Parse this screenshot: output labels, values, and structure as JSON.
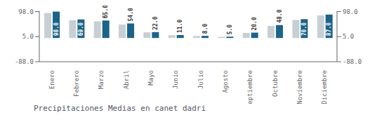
{
  "chart_data": {
    "type": "bar",
    "title": "Precipitaciones Medias en canet dadri",
    "categories": [
      "Enero",
      "Febrero",
      "Marzo",
      "Abril",
      "Mayo",
      "Junio",
      "Julio",
      "Agosto",
      "Septiembre",
      "Octubre",
      "Noviembre",
      "Diciembre"
    ],
    "series": [
      {
        "color": "#c8cfd4",
        "values": [
          93.0,
          66.0,
          62.0,
          50.0,
          21.0,
          10.5,
          7.5,
          4.5,
          19.0,
          45.0,
          67.0,
          84.0
        ]
      },
      {
        "color": "#1b6388",
        "values": [
          98.0,
          69.0,
          65.0,
          54.0,
          22.0,
          11.0,
          8.0,
          5.0,
          20.0,
          48.0,
          70.0,
          87.0
        ],
        "data_labels": true,
        "value_labels": [
          "98.0",
          "69.0",
          "65.0",
          "54.0",
          "22.0",
          "11.0",
          "8.0",
          "5.0",
          "20.0",
          "48.0",
          "70.0",
          "87.0"
        ]
      }
    ],
    "ylim": [
      -88.0,
      99.47
    ],
    "yticks": [
      {
        "value": -88.0,
        "label": "-88.0"
      },
      {
        "value": 5.0,
        "label": "5.0"
      },
      {
        "value": 98.0,
        "label": "98.0"
      }
    ]
  }
}
